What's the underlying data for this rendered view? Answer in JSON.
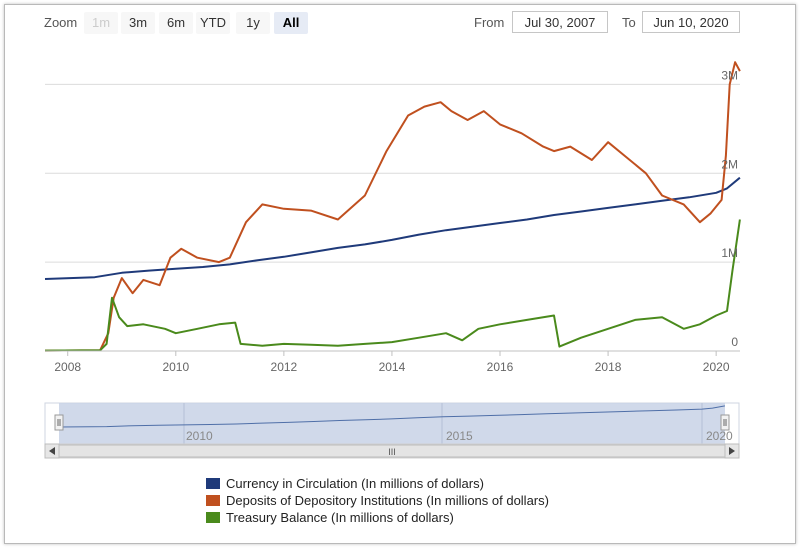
{
  "toolbar": {
    "zoom_label": "Zoom",
    "buttons": [
      {
        "label": "1m",
        "state": "disabled"
      },
      {
        "label": "3m",
        "state": "normal"
      },
      {
        "label": "6m",
        "state": "normal"
      },
      {
        "label": "YTD",
        "state": "normal"
      },
      {
        "label": "1y",
        "state": "normal"
      },
      {
        "label": "All",
        "state": "active"
      }
    ],
    "from_label": "From",
    "from_value": "Jul 30, 2007",
    "to_label": "To",
    "to_value": "Jun 10, 2020"
  },
  "navigator": {
    "year_labels": [
      "2010",
      "2015",
      "2020"
    ],
    "scroll_grip": "III"
  },
  "chart_data": {
    "type": "line",
    "x_range": [
      "2007-07-30",
      "2020-06-10"
    ],
    "x_ticks": [
      "2008",
      "2010",
      "2012",
      "2014",
      "2016",
      "2018",
      "2020"
    ],
    "y_ticks": [
      "0",
      "1M",
      "2M",
      "3M"
    ],
    "y_range": [
      0,
      3500000
    ],
    "grid": true,
    "legend_position": "bottom",
    "series": [
      {
        "name": "Currency in Circulation (In millions of dollars)",
        "color": "#1f3a7a",
        "points": [
          [
            2007.58,
            810000
          ],
          [
            2008.5,
            830000
          ],
          [
            2009.0,
            880000
          ],
          [
            2009.5,
            905000
          ],
          [
            2010.0,
            925000
          ],
          [
            2010.5,
            945000
          ],
          [
            2011.0,
            975000
          ],
          [
            2011.5,
            1020000
          ],
          [
            2012.0,
            1060000
          ],
          [
            2012.5,
            1110000
          ],
          [
            2013.0,
            1160000
          ],
          [
            2013.5,
            1200000
          ],
          [
            2014.0,
            1250000
          ],
          [
            2014.5,
            1310000
          ],
          [
            2015.0,
            1360000
          ],
          [
            2015.5,
            1400000
          ],
          [
            2016.0,
            1440000
          ],
          [
            2016.5,
            1480000
          ],
          [
            2017.0,
            1530000
          ],
          [
            2017.5,
            1570000
          ],
          [
            2018.0,
            1610000
          ],
          [
            2018.5,
            1650000
          ],
          [
            2019.0,
            1690000
          ],
          [
            2019.5,
            1730000
          ],
          [
            2020.0,
            1780000
          ],
          [
            2020.2,
            1830000
          ],
          [
            2020.44,
            1950000
          ]
        ]
      },
      {
        "name": "Deposits of Depository Institutions (In millions of dollars)",
        "color": "#c0501f",
        "points": [
          [
            2007.58,
            5000
          ],
          [
            2008.6,
            8000
          ],
          [
            2008.75,
            200000
          ],
          [
            2008.85,
            600000
          ],
          [
            2009.0,
            820000
          ],
          [
            2009.2,
            650000
          ],
          [
            2009.4,
            800000
          ],
          [
            2009.7,
            740000
          ],
          [
            2009.9,
            1050000
          ],
          [
            2010.1,
            1150000
          ],
          [
            2010.4,
            1050000
          ],
          [
            2010.8,
            1000000
          ],
          [
            2011.0,
            1050000
          ],
          [
            2011.3,
            1450000
          ],
          [
            2011.6,
            1650000
          ],
          [
            2012.0,
            1600000
          ],
          [
            2012.5,
            1580000
          ],
          [
            2013.0,
            1480000
          ],
          [
            2013.5,
            1750000
          ],
          [
            2013.9,
            2250000
          ],
          [
            2014.3,
            2650000
          ],
          [
            2014.6,
            2750000
          ],
          [
            2014.9,
            2800000
          ],
          [
            2015.1,
            2700000
          ],
          [
            2015.4,
            2600000
          ],
          [
            2015.7,
            2700000
          ],
          [
            2016.0,
            2550000
          ],
          [
            2016.4,
            2450000
          ],
          [
            2016.8,
            2300000
          ],
          [
            2017.0,
            2250000
          ],
          [
            2017.3,
            2300000
          ],
          [
            2017.7,
            2150000
          ],
          [
            2018.0,
            2350000
          ],
          [
            2018.3,
            2200000
          ],
          [
            2018.7,
            2000000
          ],
          [
            2019.0,
            1750000
          ],
          [
            2019.4,
            1650000
          ],
          [
            2019.7,
            1450000
          ],
          [
            2019.9,
            1550000
          ],
          [
            2020.1,
            1700000
          ],
          [
            2020.18,
            2200000
          ],
          [
            2020.25,
            3000000
          ],
          [
            2020.35,
            3250000
          ],
          [
            2020.44,
            3150000
          ]
        ]
      },
      {
        "name": "Treasury Balance (In millions of dollars)",
        "color": "#4a8a1c",
        "points": [
          [
            2007.58,
            5000
          ],
          [
            2008.6,
            8000
          ],
          [
            2008.72,
            80000
          ],
          [
            2008.82,
            600000
          ],
          [
            2008.95,
            380000
          ],
          [
            2009.1,
            280000
          ],
          [
            2009.4,
            300000
          ],
          [
            2009.8,
            250000
          ],
          [
            2010.0,
            200000
          ],
          [
            2010.4,
            250000
          ],
          [
            2010.8,
            300000
          ],
          [
            2011.1,
            320000
          ],
          [
            2011.2,
            80000
          ],
          [
            2011.6,
            60000
          ],
          [
            2012.0,
            80000
          ],
          [
            2012.5,
            70000
          ],
          [
            2013.0,
            60000
          ],
          [
            2013.5,
            80000
          ],
          [
            2014.0,
            100000
          ],
          [
            2014.5,
            150000
          ],
          [
            2015.0,
            200000
          ],
          [
            2015.3,
            120000
          ],
          [
            2015.6,
            250000
          ],
          [
            2016.0,
            300000
          ],
          [
            2016.5,
            350000
          ],
          [
            2017.0,
            400000
          ],
          [
            2017.1,
            50000
          ],
          [
            2017.5,
            150000
          ],
          [
            2018.0,
            250000
          ],
          [
            2018.5,
            350000
          ],
          [
            2019.0,
            380000
          ],
          [
            2019.4,
            250000
          ],
          [
            2019.7,
            300000
          ],
          [
            2020.0,
            400000
          ],
          [
            2020.2,
            450000
          ],
          [
            2020.3,
            900000
          ],
          [
            2020.44,
            1480000
          ]
        ]
      }
    ]
  }
}
